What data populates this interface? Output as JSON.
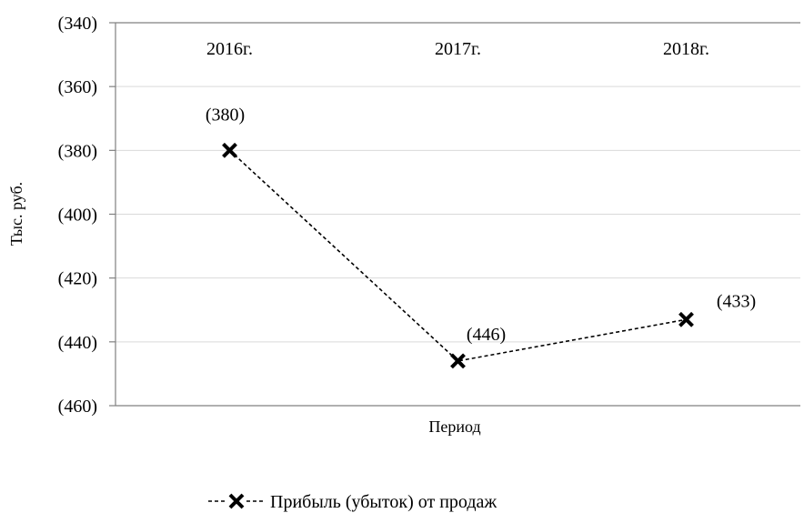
{
  "chart_data": {
    "type": "line",
    "title": "",
    "ylabel": "Тыс. руб.",
    "xlabel": "Период",
    "categories": [
      "2016г.",
      "2017г.",
      "2018г."
    ],
    "ylim": [
      -460,
      -340
    ],
    "y_reversed": false,
    "y_ticks": [
      -340,
      -360,
      -380,
      -400,
      -420,
      -440,
      -460
    ],
    "y_tick_labels": [
      "(340)",
      "(360)",
      "(380)",
      "(400)",
      "(420)",
      "(440)",
      "(460)"
    ],
    "x_axis_position": "top",
    "grid": true,
    "series": [
      {
        "name": "Прибыль (убыток) от продаж",
        "values": [
          -380,
          -446,
          -433
        ],
        "data_labels": [
          "(380)",
          "(446)",
          "(433)"
        ],
        "marker": "x",
        "line_style": "dashed",
        "color": "#000000"
      }
    ],
    "legend": {
      "position": "bottom"
    }
  }
}
